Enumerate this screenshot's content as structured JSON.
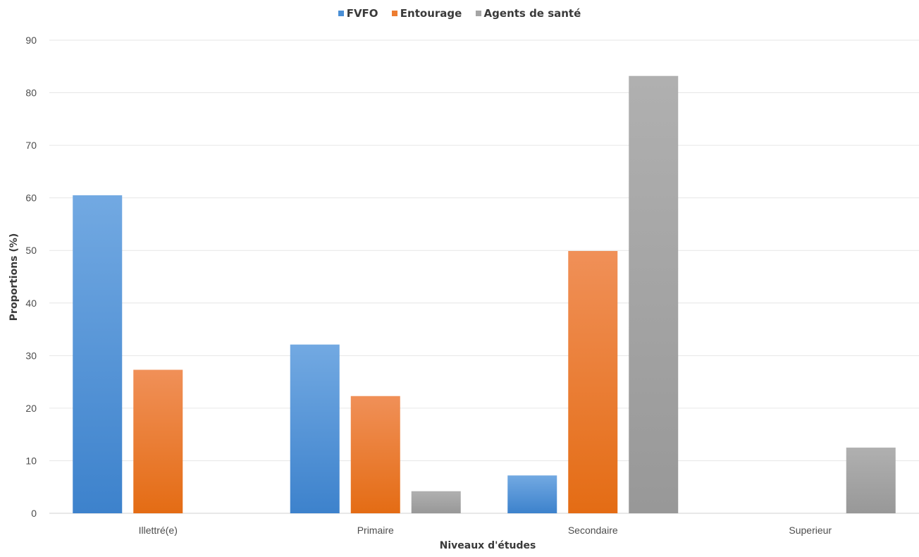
{
  "chart_data": {
    "type": "bar",
    "categories": [
      "Illettré(e)",
      "Primaire",
      "Secondaire",
      "Superieur"
    ],
    "series": [
      {
        "name": "FVFO",
        "values": [
          60.5,
          32.1,
          7.2,
          0
        ],
        "color": "#4a8fd6"
      },
      {
        "name": "Entourage",
        "values": [
          27.3,
          22.3,
          49.9,
          0
        ],
        "color": "#ed7d31"
      },
      {
        "name": "Agents de santé",
        "values": [
          0,
          4.2,
          83.2,
          12.5
        ],
        "color": "#a5a5a5"
      }
    ],
    "xlabel": "Niveaux d'études",
    "ylabel": "Proportions (%)",
    "ylim": [
      0,
      90
    ],
    "yticks": [
      0,
      10,
      20,
      30,
      40,
      50,
      60,
      70,
      80,
      90
    ],
    "grid": true,
    "legend_position": "top-center"
  }
}
